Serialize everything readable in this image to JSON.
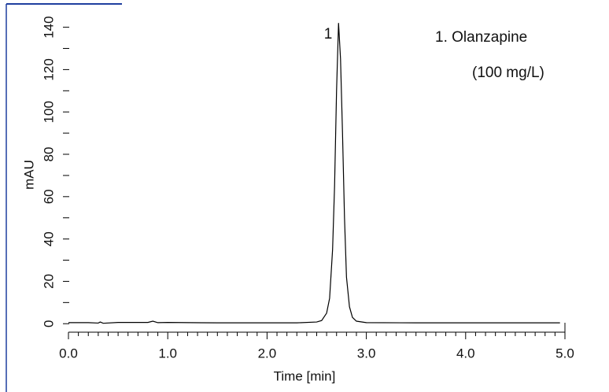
{
  "chart_data": {
    "type": "line",
    "xlabel": "Time [min]",
    "ylabel": "mAU",
    "annotations": [
      "1",
      "1. Olanzapine",
      "(100 mg/L)"
    ],
    "x": [
      0,
      0.2,
      0.3,
      0.32,
      0.35,
      0.5,
      0.8,
      0.85,
      0.9,
      1.0,
      1.5,
      2.0,
      2.3,
      2.5,
      2.55,
      2.6,
      2.63,
      2.66,
      2.68,
      2.7,
      2.72,
      2.74,
      2.76,
      2.78,
      2.8,
      2.83,
      2.86,
      2.9,
      3.0,
      3.5,
      4.0,
      4.5,
      4.95
    ],
    "values": [
      0.5,
      0.5,
      0.3,
      0.8,
      0.2,
      0.6,
      0.6,
      1.2,
      0.5,
      0.6,
      0.4,
      0.4,
      0.4,
      0.8,
      1.5,
      5,
      12,
      35,
      65,
      110,
      142,
      125,
      90,
      50,
      22,
      8,
      3,
      1.2,
      0.5,
      0.4,
      0.4,
      0.4,
      0.4
    ],
    "color": "#000000",
    "xlim": [
      0,
      5
    ],
    "ylim": [
      -4,
      151
    ],
    "xticks": [
      {
        "value": 0,
        "label": "0.0"
      },
      {
        "value": 1,
        "label": "1.0"
      },
      {
        "value": 2,
        "label": "2.0"
      },
      {
        "value": 3,
        "label": "3.0"
      },
      {
        "value": 4,
        "label": "4.0"
      },
      {
        "value": 5,
        "label": "5.0"
      }
    ],
    "xminorticks": [
      0.1,
      0.2,
      0.3,
      0.4,
      0.5,
      0.6,
      0.7,
      0.8,
      0.9,
      1.1,
      1.2,
      1.3,
      1.4,
      1.5,
      1.6,
      1.7,
      1.8,
      1.9,
      2.1,
      2.2,
      2.3,
      2.4,
      2.5,
      2.6,
      2.7,
      2.8,
      2.9,
      3.1,
      3.2,
      3.3,
      3.4,
      3.5,
      3.6,
      3.7,
      3.8,
      3.9,
      4.1,
      4.2,
      4.3,
      4.4,
      4.5,
      4.6,
      4.7,
      4.8,
      4.9
    ],
    "yticks": [
      0,
      20,
      40,
      60,
      80,
      100,
      120,
      140
    ],
    "yminorticks": [
      10,
      30,
      50,
      70,
      90,
      110,
      130
    ]
  }
}
